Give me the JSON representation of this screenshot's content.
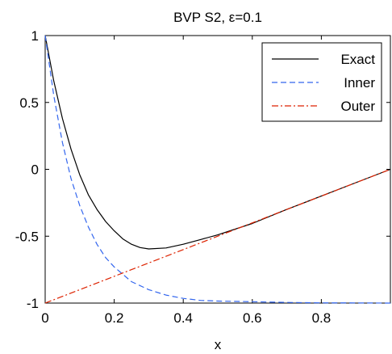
{
  "chart_data": {
    "type": "line",
    "title": "BVP S2, ε=0.1",
    "xlabel": "x",
    "ylabel": "",
    "xlim": [
      0,
      1
    ],
    "ylim": [
      -1,
      1
    ],
    "xticks": [
      0,
      0.2,
      0.4,
      0.6,
      0.8
    ],
    "xtick_labels": [
      "0",
      "0.2",
      "0.4",
      "0.6",
      "0.8"
    ],
    "yticks": [
      -1,
      -0.5,
      0,
      0.5,
      1
    ],
    "ytick_labels": [
      "-1",
      "-0.5",
      "0",
      "0.5",
      "1"
    ],
    "grid": false,
    "legend_position": "top-right",
    "series": [
      {
        "name": "Exact",
        "color": "#000000",
        "style": "solid",
        "x": [
          0,
          0.025,
          0.05,
          0.075,
          0.1,
          0.125,
          0.15,
          0.175,
          0.2,
          0.225,
          0.25,
          0.275,
          0.3,
          0.35,
          0.4,
          0.45,
          0.5,
          0.6,
          0.7,
          0.8,
          0.9,
          1.0
        ],
        "y": [
          1,
          0.66,
          0.38,
          0.15,
          -0.04,
          -0.19,
          -0.3,
          -0.39,
          -0.46,
          -0.52,
          -0.56,
          -0.585,
          -0.595,
          -0.588,
          -0.56,
          -0.525,
          -0.49,
          -0.405,
          -0.3,
          -0.2,
          -0.1,
          0
        ]
      },
      {
        "name": "Inner",
        "color": "#3366ee",
        "style": "dashed",
        "x": [
          0,
          0.025,
          0.05,
          0.075,
          0.1,
          0.125,
          0.15,
          0.175,
          0.2,
          0.25,
          0.3,
          0.35,
          0.4,
          0.45,
          0.5,
          0.6,
          0.7,
          0.8,
          0.9,
          1.0
        ],
        "y": [
          1,
          0.55,
          0.2,
          -0.07,
          -0.27,
          -0.43,
          -0.56,
          -0.66,
          -0.73,
          -0.84,
          -0.9,
          -0.94,
          -0.965,
          -0.98,
          -0.985,
          -0.99,
          -0.995,
          -0.998,
          -0.999,
          -1
        ]
      },
      {
        "name": "Outer",
        "color": "#dd2200",
        "style": "dashdot",
        "x": [
          0,
          1
        ],
        "y": [
          -1,
          0
        ]
      }
    ]
  }
}
